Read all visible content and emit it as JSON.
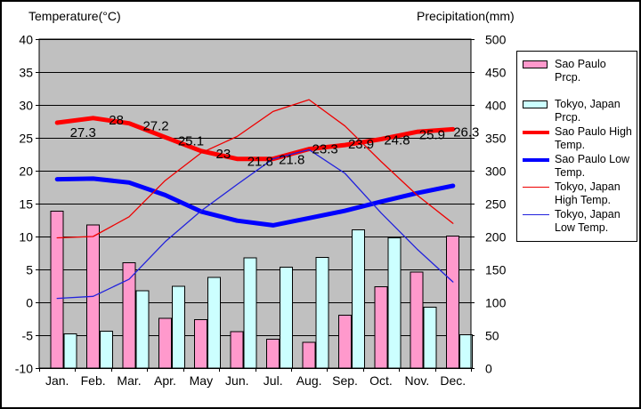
{
  "titles": {
    "temperature_axis": "Temperature(°C)",
    "precipitation_axis": "Precipitation(mm)"
  },
  "axes": {
    "temp_ticks": [
      "40",
      "35",
      "30",
      "25",
      "20",
      "15",
      "10",
      "5",
      "0",
      "-5",
      "-10"
    ],
    "precip_ticks": [
      "500",
      "450",
      "400",
      "350",
      "300",
      "250",
      "200",
      "150",
      "100",
      "50",
      "0"
    ],
    "months": [
      "Jan.",
      "Feb.",
      "Mar.",
      "Apr.",
      "May",
      "Jun.",
      "Jul.",
      "Aug.",
      "Sep.",
      "Oct.",
      "Nov.",
      "Dec."
    ]
  },
  "colors": {
    "plot_background": "#c0c0c0",
    "gridline": "#000000",
    "sao_paulo_prcp_bar": "#ff99cc",
    "tokyo_prcp_bar": "#ccffff",
    "sao_paulo_high_line": "#ff0000",
    "sao_paulo_low_line": "#0000ff",
    "tokyo_high_line": "#ee0000",
    "tokyo_low_line": "#2222dd"
  },
  "legend": [
    {
      "label": "Sao Paulo Prcp.",
      "swatch": "bar",
      "color": "#ff99cc"
    },
    {
      "label": "Tokyo, Japan Prcp.",
      "swatch": "bar",
      "color": "#ccffff"
    },
    {
      "label": "Sao Paulo High Temp.",
      "swatch": "line-thick",
      "color": "#ff0000"
    },
    {
      "label": "Sao Paulo Low Temp.",
      "swatch": "line-thick",
      "color": "#0000ff"
    },
    {
      "label": "Tokyo, Japan High Temp.",
      "swatch": "line-thin",
      "color": "#ee0000"
    },
    {
      "label": "Tokyo, Japan Low Temp.",
      "swatch": "line-thin",
      "color": "#2222dd"
    }
  ],
  "chart_data": {
    "type": "combo bar + line climate chart",
    "categories": [
      "Jan.",
      "Feb.",
      "Mar.",
      "Apr.",
      "May",
      "Jun.",
      "Jul.",
      "Aug.",
      "Sep.",
      "Oct.",
      "Nov.",
      "Dec."
    ],
    "temp_axis": {
      "label": "Temperature(°C)",
      "min": -10,
      "max": 40,
      "step": 5,
      "side": "left"
    },
    "precip_axis": {
      "label": "Precipitation(mm)",
      "min": 0,
      "max": 500,
      "step": 50,
      "side": "right"
    },
    "grid": "horizontal gridlines every 5°C / 50mm on gray plot area",
    "legend_position": "right",
    "series": [
      {
        "name": "Sao Paulo Prcp.",
        "type": "bar",
        "axis": "precip",
        "color": "#ff99cc",
        "values": [
          238.7,
          217.4,
          159.8,
          75.8,
          73.6,
          55.7,
          44.1,
          38.9,
          80.5,
          123.6,
          145.8,
          200.6
        ]
      },
      {
        "name": "Tokyo, Japan Prcp.",
        "type": "bar",
        "axis": "precip",
        "color": "#ccffff",
        "values": [
          52.3,
          56.1,
          117.5,
          124.5,
          137.8,
          167.7,
          153.5,
          168.2,
          209.9,
          197.8,
          92.5,
          51.0
        ]
      },
      {
        "name": "Sao Paulo High Temp.",
        "type": "line",
        "axis": "temp",
        "color": "#ff0000",
        "stroke_width": 5,
        "values": [
          27.3,
          28,
          27.2,
          25.1,
          23,
          21.8,
          21.8,
          23.3,
          23.9,
          24.8,
          25.9,
          26.3
        ],
        "point_labels": [
          "27.3",
          "28",
          "27.2",
          "25.1",
          "23",
          "21.8",
          "21.8",
          "23.3",
          "23.9",
          "24.8",
          "25.9",
          "26.3"
        ]
      },
      {
        "name": "Sao Paulo Low Temp.",
        "type": "line",
        "axis": "temp",
        "color": "#0000ff",
        "stroke_width": 5,
        "values": [
          18.7,
          18.8,
          18.2,
          16.3,
          13.8,
          12.4,
          11.7,
          12.8,
          13.9,
          15.3,
          16.6,
          17.7
        ]
      },
      {
        "name": "Tokyo, Japan High Temp.",
        "type": "line",
        "axis": "temp",
        "color": "#ee0000",
        "stroke_width": 1.3,
        "values": [
          9.8,
          10.0,
          13.0,
          18.5,
          22.7,
          25.2,
          29.0,
          30.8,
          26.8,
          21.4,
          16.3,
          12.0
        ]
      },
      {
        "name": "Tokyo, Japan Low Temp.",
        "type": "line",
        "axis": "temp",
        "color": "#2222dd",
        "stroke_width": 1.3,
        "values": [
          0.6,
          0.9,
          3.5,
          9.2,
          13.9,
          17.9,
          21.8,
          23.2,
          19.6,
          13.6,
          8.1,
          3.1
        ]
      }
    ]
  }
}
